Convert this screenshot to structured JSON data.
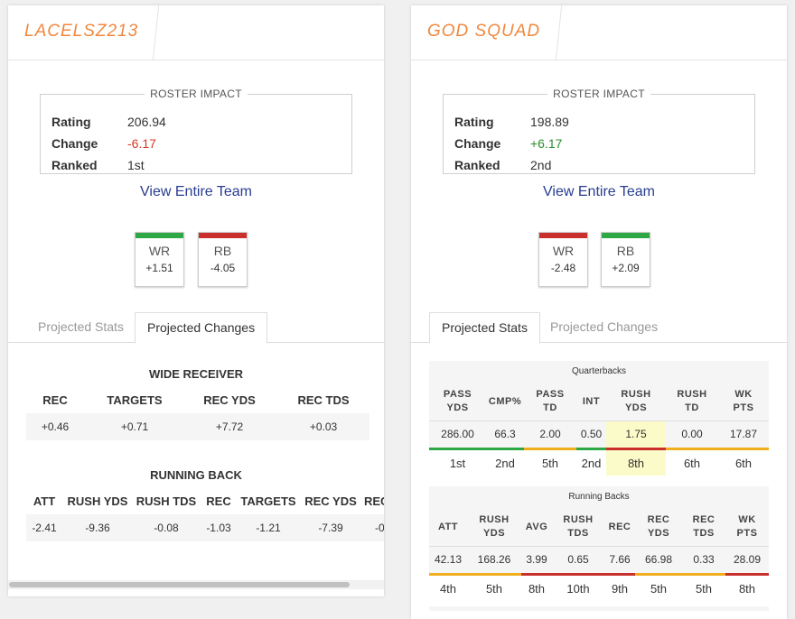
{
  "left": {
    "team_name": "LACELSZ213",
    "roster_impact": {
      "legend": "ROSTER IMPACT",
      "rating_label": "Rating",
      "rating_value": "206.94",
      "change_label": "Change",
      "change_value": "-6.17",
      "ranked_label": "Ranked",
      "ranked_value": "1st"
    },
    "view_link": "View Entire Team",
    "positions": [
      {
        "label": "WR",
        "value": "+1.51",
        "color": "#2ea844"
      },
      {
        "label": "RB",
        "value": "-4.05",
        "color": "#c9302c"
      }
    ],
    "tabs": [
      "Projected Stats",
      "Projected Changes"
    ],
    "active_tab": "Projected Changes",
    "wr": {
      "title": "WIDE RECEIVER",
      "headers": [
        "REC",
        "TARGETS",
        "REC YDS",
        "REC TDS"
      ],
      "values": [
        "+0.46",
        "+0.71",
        "+7.72",
        "+0.03"
      ]
    },
    "rb": {
      "title": "RUNNING BACK",
      "headers": [
        "ATT",
        "RUSH YDS",
        "RUSH TDS",
        "REC",
        "TARGETS",
        "REC YDS",
        "REC"
      ],
      "values": [
        "-2.41",
        "-9.36",
        "-0.08",
        "-1.03",
        "-1.21",
        "-7.39",
        "-0"
      ]
    }
  },
  "right": {
    "team_name": "GOD SQUAD",
    "roster_impact": {
      "legend": "ROSTER IMPACT",
      "rating_label": "Rating",
      "rating_value": "198.89",
      "change_label": "Change",
      "change_value": "+6.17",
      "ranked_label": "Ranked",
      "ranked_value": "2nd"
    },
    "view_link": "View Entire Team",
    "positions": [
      {
        "label": "WR",
        "value": "-2.48",
        "color": "#c9302c"
      },
      {
        "label": "RB",
        "value": "+2.09",
        "color": "#2ea844"
      }
    ],
    "tabs": [
      "Projected Stats",
      "Projected Changes"
    ],
    "active_tab": "Projected Stats",
    "qb": {
      "title": "Quarterbacks",
      "headers": [
        [
          "PASS",
          "YDS"
        ],
        [
          "CMP%",
          ""
        ],
        [
          "PASS",
          "TD"
        ],
        [
          "INT",
          ""
        ],
        [
          "RUSH",
          "YDS"
        ],
        [
          "RUSH",
          "TD"
        ],
        [
          "WK",
          "PTS"
        ]
      ],
      "values": [
        "286.00",
        "66.3",
        "2.00",
        "0.50",
        "1.75",
        "0.00",
        "17.87"
      ],
      "ranks": [
        "1st",
        "2nd",
        "5th",
        "2nd",
        "8th",
        "6th",
        "6th"
      ],
      "rank_colors": [
        "green",
        "green",
        "yellow",
        "green",
        "red",
        "yellow",
        "yellow"
      ]
    },
    "rb": {
      "title": "Running Backs",
      "headers": [
        [
          "ATT",
          ""
        ],
        [
          "RUSH",
          "YDS"
        ],
        [
          "AVG",
          ""
        ],
        [
          "RUSH",
          "TDS"
        ],
        [
          "REC",
          ""
        ],
        [
          "REC",
          "YDS"
        ],
        [
          "REC",
          "TDS"
        ],
        [
          "WK",
          "PTS"
        ]
      ],
      "values": [
        "42.13",
        "168.26",
        "3.99",
        "0.65",
        "7.66",
        "66.98",
        "0.33",
        "28.09"
      ],
      "ranks": [
        "4th",
        "5th",
        "8th",
        "10th",
        "9th",
        "5th",
        "5th",
        "8th"
      ],
      "rank_colors": [
        "yellow",
        "yellow",
        "red",
        "red",
        "red",
        "yellow",
        "yellow",
        "red"
      ]
    }
  }
}
